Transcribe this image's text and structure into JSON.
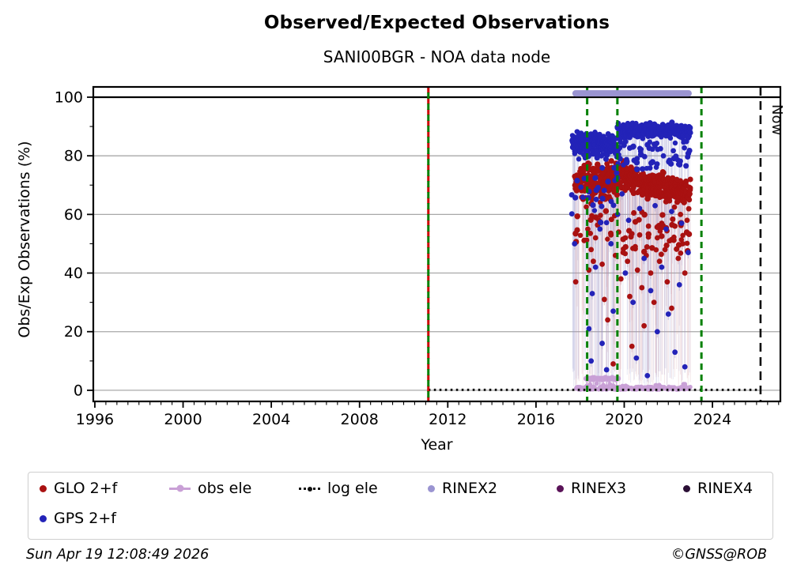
{
  "title": "Observed/Expected Observations",
  "subtitle": "SANI00BGR - NOA data node",
  "footer": {
    "left": "Sun Apr 19 12:08:49 2026",
    "right": "©GNSS@ROB"
  },
  "axes": {
    "xlabel": "Year",
    "ylabel": "Obs/Exp Observations (%)",
    "xlim": [
      1995.93,
      2027.08
    ],
    "ylim": [
      -3.8,
      103.5
    ],
    "xticks": [
      1996,
      2000,
      2004,
      2008,
      2012,
      2016,
      2020,
      2024
    ],
    "yticks": [
      0,
      20,
      40,
      60,
      80,
      100
    ],
    "x_minor_step": 0.5,
    "y_minor_step": 10,
    "gridlines_y": [
      0,
      20,
      40,
      60,
      80
    ],
    "ref_line_y": 100
  },
  "colors": {
    "grid": "#a8a8a8",
    "frame": "#000000",
    "ref_line": "#000000",
    "event_green": "#008000",
    "event_red": "#cc0000",
    "now": "#111111",
    "glo": "#a91111",
    "gps": "#2323b8",
    "obs_ele": "#c9a0d6",
    "log_ele": "#111111",
    "rinex2": "#9a94d1",
    "rinex3": "#5a1358",
    "rinex4": "#2b0f35"
  },
  "chart_data": {
    "type": "scatter",
    "seed": 42,
    "series": [
      {
        "name": "GLO 2+f",
        "key": "glo",
        "color": "#a91111",
        "stem_color": "rgba(205,140,150,0.20)",
        "segments": [
          {
            "x0": 2017.75,
            "x1": 2019.69,
            "n": 235,
            "base": 71.0,
            "slope": 0,
            "band": 6.5,
            "wave": 1.4,
            "straggle_frac": 0.1,
            "straggle_lo": 50,
            "straggle_hi": 63
          },
          {
            "x0": 2019.69,
            "x1": 2023.0,
            "n": 385,
            "base": 73.2,
            "slope": -1.9,
            "band": 5.2,
            "wave": 1.2,
            "straggle_frac": 0.12,
            "straggle_lo": 46,
            "straggle_hi": 61
          }
        ],
        "outliers": [
          [
            2017.8,
            37
          ],
          [
            2018.35,
            55
          ],
          [
            2018.4,
            41
          ],
          [
            2018.5,
            48
          ],
          [
            2018.6,
            44
          ],
          [
            2018.7,
            52
          ],
          [
            2018.85,
            58
          ],
          [
            2019.0,
            43
          ],
          [
            2019.1,
            31
          ],
          [
            2019.25,
            24
          ],
          [
            2019.4,
            53
          ],
          [
            2019.5,
            9
          ],
          [
            2019.6,
            46
          ],
          [
            2019.75,
            54
          ],
          [
            2019.85,
            38
          ],
          [
            2019.95,
            47
          ],
          [
            2020.05,
            52
          ],
          [
            2020.15,
            44
          ],
          [
            2020.25,
            32
          ],
          [
            2020.35,
            15
          ],
          [
            2020.5,
            49
          ],
          [
            2020.6,
            41
          ],
          [
            2020.7,
            53
          ],
          [
            2020.8,
            35
          ],
          [
            2020.9,
            22
          ],
          [
            2021.0,
            46
          ],
          [
            2021.1,
            56
          ],
          [
            2021.2,
            40
          ],
          [
            2021.35,
            30
          ],
          [
            2021.5,
            52
          ],
          [
            2021.6,
            44
          ],
          [
            2021.7,
            57
          ],
          [
            2021.85,
            48
          ],
          [
            2021.95,
            37
          ],
          [
            2022.05,
            51
          ],
          [
            2022.15,
            28
          ],
          [
            2022.3,
            56
          ],
          [
            2022.45,
            45
          ],
          [
            2022.55,
            60
          ],
          [
            2022.65,
            50
          ],
          [
            2022.75,
            40
          ],
          [
            2022.85,
            58
          ],
          [
            2022.95,
            65
          ]
        ]
      },
      {
        "name": "GPS 2+f",
        "key": "gps",
        "color": "#2323b8",
        "stem_color": "rgba(150,150,205,0.20)",
        "segments": [
          {
            "x0": 2017.62,
            "x1": 2019.69,
            "n": 240,
            "base": 83.5,
            "slope": 0,
            "band": 4.8,
            "wave": 1.2,
            "straggle_frac": 0.12,
            "straggle_lo": 57,
            "straggle_hi": 76
          },
          {
            "x0": 2019.69,
            "x1": 2023.0,
            "n": 385,
            "base": 88.6,
            "slope": 0,
            "band": 2.3,
            "wave": 0.9,
            "straggle_frac": 0.15,
            "straggle_lo": 75,
            "straggle_hi": 85
          }
        ],
        "outliers": [
          [
            2017.75,
            50
          ],
          [
            2018.4,
            21
          ],
          [
            2018.5,
            10
          ],
          [
            2018.55,
            33
          ],
          [
            2018.7,
            42
          ],
          [
            2018.9,
            55
          ],
          [
            2019.0,
            16
          ],
          [
            2019.2,
            7
          ],
          [
            2019.4,
            50
          ],
          [
            2019.5,
            27
          ],
          [
            2019.7,
            60
          ],
          [
            2019.9,
            67
          ],
          [
            2020.05,
            40
          ],
          [
            2020.2,
            58
          ],
          [
            2020.4,
            30
          ],
          [
            2020.55,
            11
          ],
          [
            2020.7,
            62
          ],
          [
            2020.9,
            45
          ],
          [
            2021.05,
            5
          ],
          [
            2021.2,
            34
          ],
          [
            2021.4,
            63
          ],
          [
            2021.5,
            20
          ],
          [
            2021.7,
            42
          ],
          [
            2021.9,
            55
          ],
          [
            2022.0,
            26
          ],
          [
            2022.15,
            61
          ],
          [
            2022.3,
            13
          ],
          [
            2022.5,
            36
          ],
          [
            2022.6,
            57
          ],
          [
            2022.75,
            8
          ],
          [
            2022.9,
            47
          ]
        ]
      },
      {
        "name": "obs ele",
        "key": "obs_ele",
        "color": "#c9a0d6",
        "near_zero": {
          "x0": 2017.8,
          "x1": 2023.0,
          "n": 215,
          "y_lo": 0.2,
          "y_hi": 1.2
        },
        "bar": {
          "x0": 2018.28,
          "x1": 2019.72,
          "y": 4.0
        },
        "dangles": [
          [
            2018.3,
            1.5
          ],
          [
            2018.45,
            2.0
          ],
          [
            2018.6,
            1.2
          ],
          [
            2018.75,
            2.3
          ],
          [
            2018.9,
            1.0
          ],
          [
            2019.05,
            1.8
          ],
          [
            2019.2,
            1.3
          ],
          [
            2019.35,
            2.1
          ],
          [
            2019.5,
            1.6
          ],
          [
            2019.65,
            1.1
          ]
        ],
        "bumps": [
          [
            2020.0,
            1.6
          ],
          [
            2021.5,
            2.0
          ],
          [
            2022.7,
            2.2
          ]
        ]
      },
      {
        "name": "log ele",
        "key": "log_ele",
        "color": "#111111",
        "line": {
          "x0": 2011.12,
          "x1": 2026.18,
          "y": 0.15,
          "style": "dotted"
        }
      },
      {
        "name": "RINEX2",
        "key": "rinex2",
        "color": "#9a94d1",
        "bar": {
          "x0": 2017.79,
          "x1": 2022.92,
          "y": 101.3
        }
      },
      {
        "name": "RINEX3",
        "key": "rinex3",
        "color": "#5a1358"
      },
      {
        "name": "RINEX4",
        "key": "rinex4",
        "color": "#2b0f35"
      }
    ],
    "event_lines": [
      {
        "x": 2011.12,
        "colors": [
          "#cc0000",
          "#008000"
        ]
      },
      {
        "x": 2018.32,
        "colors": [
          "#008000"
        ]
      },
      {
        "x": 2019.69,
        "colors": [
          "#008000"
        ]
      },
      {
        "x": 2023.5,
        "colors": [
          "#008000"
        ]
      }
    ],
    "now_line": {
      "x": 2026.18,
      "label": "Now",
      "color": "#111111"
    }
  },
  "legend": {
    "items": [
      {
        "label": "GLO 2+f",
        "marker": "dot",
        "color": "#a91111"
      },
      {
        "label": "obs ele",
        "marker": "line-dot",
        "color": "#c9a0d6"
      },
      {
        "label": "log ele",
        "marker": "dotted-line-dot",
        "color": "#111111"
      },
      {
        "label": "RINEX2",
        "marker": "dot",
        "color": "#9a94d1"
      },
      {
        "label": "RINEX3",
        "marker": "dot",
        "color": "#5a1358"
      },
      {
        "label": "RINEX4",
        "marker": "dot",
        "color": "#2b0f35"
      },
      {
        "label": "GPS 2+f",
        "marker": "dot",
        "color": "#2323b8"
      }
    ]
  }
}
